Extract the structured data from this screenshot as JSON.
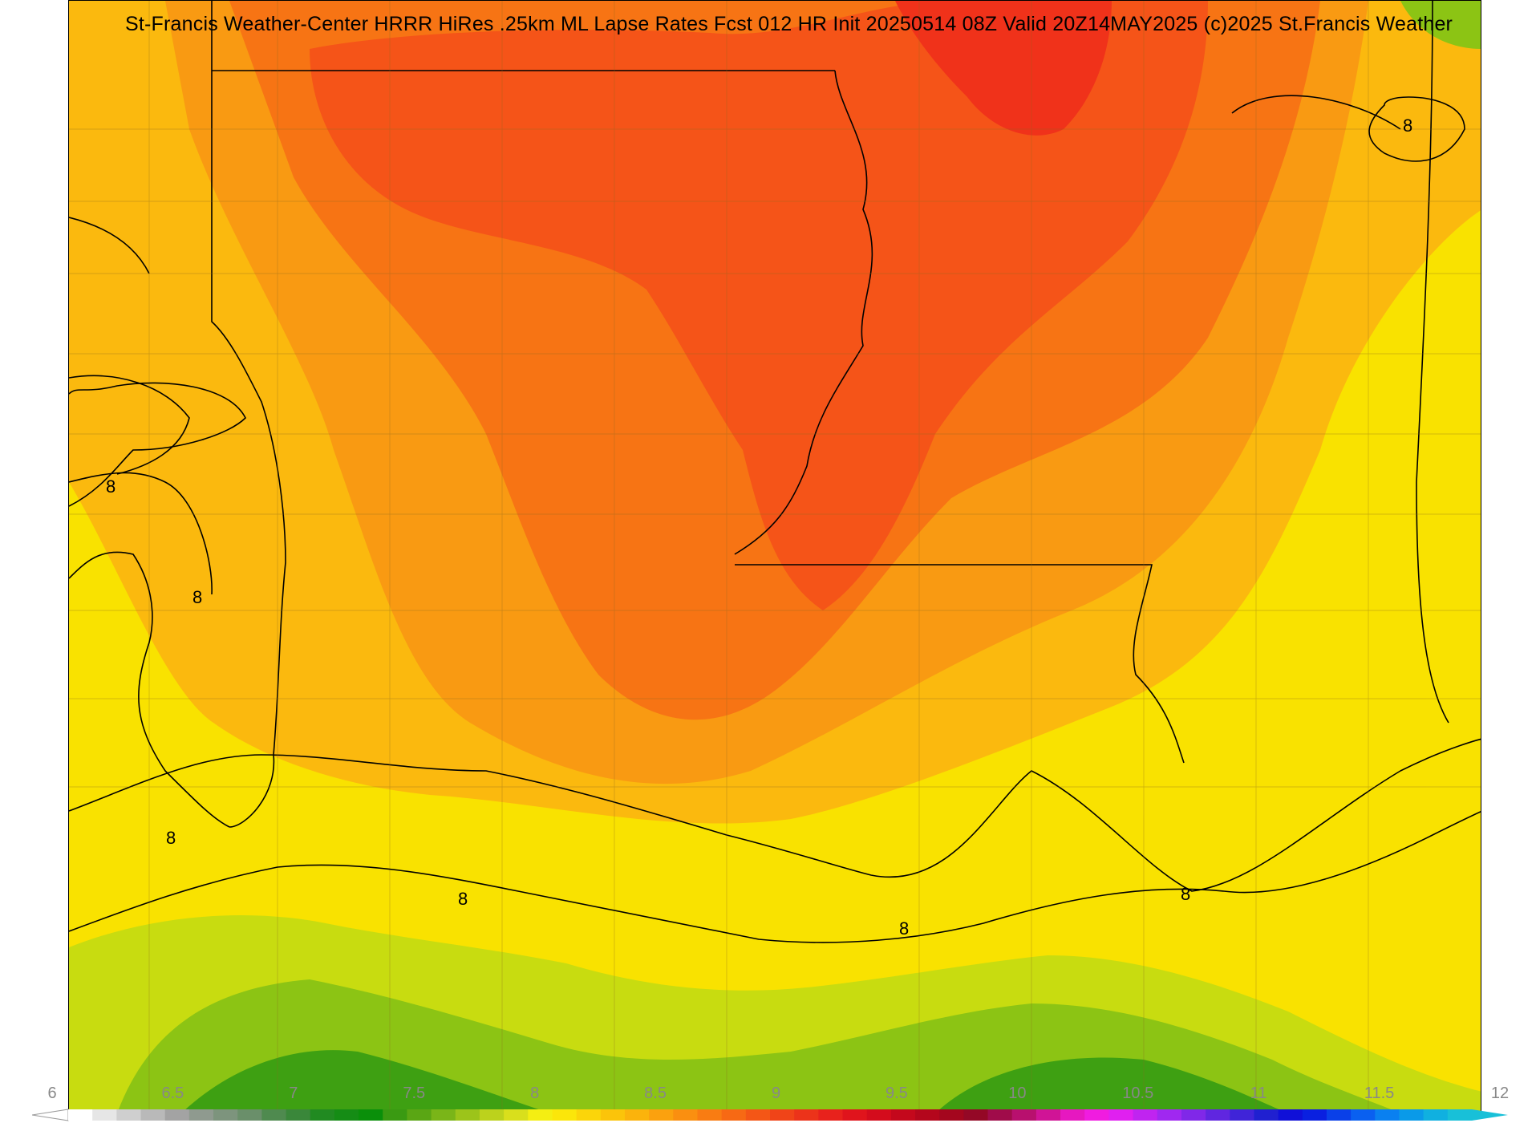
{
  "title": "St-Francis Weather-Center HRRR HiRes .25km ML Lapse Rates  Fcst 012 HR Init 20250514 08Z  Valid 20Z14MAY2025    (c)2025 St.Francis Weather",
  "contour_label": "8",
  "colorbar": {
    "min": 6,
    "max": 12,
    "ticks": [
      "6",
      "6.5",
      "7",
      "7.5",
      "8",
      "8.5",
      "9",
      "9.5",
      "10",
      "10.5",
      "11",
      "11.5",
      "12"
    ],
    "colors": [
      "#ffffff",
      "#e6e6e6",
      "#cfcfcf",
      "#b9b9b9",
      "#a3a3a3",
      "#8f9a8f",
      "#7d947d",
      "#6a8f6a",
      "#4f8a4f",
      "#3a873a",
      "#218a21",
      "#158c15",
      "#0a8f0a",
      "#3a9a12",
      "#5aa614",
      "#7ab518",
      "#9cc41a",
      "#bcd21c",
      "#d9df1c",
      "#f4ee12",
      "#fbe60a",
      "#fbd50a",
      "#fbc40a",
      "#fbb30c",
      "#fba10e",
      "#fa8f10",
      "#f97c12",
      "#f76914",
      "#f45616",
      "#f04418",
      "#ec331a",
      "#e8221c",
      "#e0141c",
      "#d40c1c",
      "#c4081c",
      "#b4061c",
      "#a4061e",
      "#940826",
      "#a00c4a",
      "#b8106e",
      "#d01496",
      "#e618c0",
      "#f01ce0",
      "#e020f0",
      "#c024f0",
      "#a028f0",
      "#8028e8",
      "#6026e0",
      "#4024d8",
      "#2020d0",
      "#1010d8",
      "#0a20e0",
      "#0a40e8",
      "#0a60f0",
      "#0a80f0",
      "#0a9ae8",
      "#10b0e0",
      "#18c0d8"
    ]
  },
  "map_colors": {
    "background": "#f9e200",
    "orange_light": "#fbb90e",
    "orange": "#f99a12",
    "orange_dark": "#f77414",
    "red_orange": "#f55418",
    "red": "#f0321a",
    "green_light": "#c8dc10",
    "green": "#8cc414",
    "green_dark": "#3ea012"
  }
}
